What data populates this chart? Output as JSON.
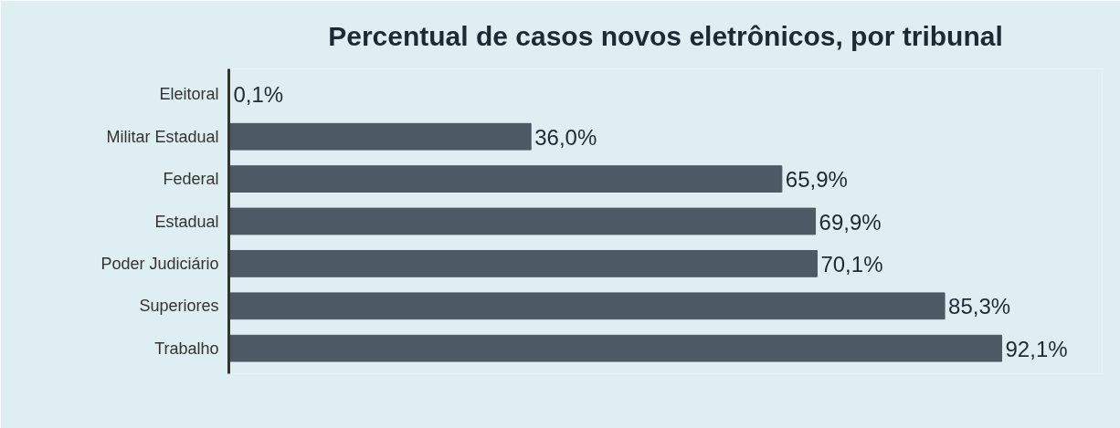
{
  "chart_data": {
    "type": "bar",
    "orientation": "horizontal",
    "title": "Percentual de casos novos eletrônicos, por tribunal",
    "categories": [
      "Eleitoral",
      "Militar Estadual",
      "Federal",
      "Estadual",
      "Poder Judiciário",
      "Superiores",
      "Trabalho"
    ],
    "values": [
      0.1,
      36.0,
      65.9,
      69.9,
      70.1,
      85.3,
      92.1
    ],
    "value_labels": [
      "0,1%",
      "36,0%",
      "65,9%",
      "69,9%",
      "70,1%",
      "85,3%",
      "92,1%"
    ],
    "color": "#4b5a63",
    "grid": false,
    "tick_labels": "y"
  }
}
